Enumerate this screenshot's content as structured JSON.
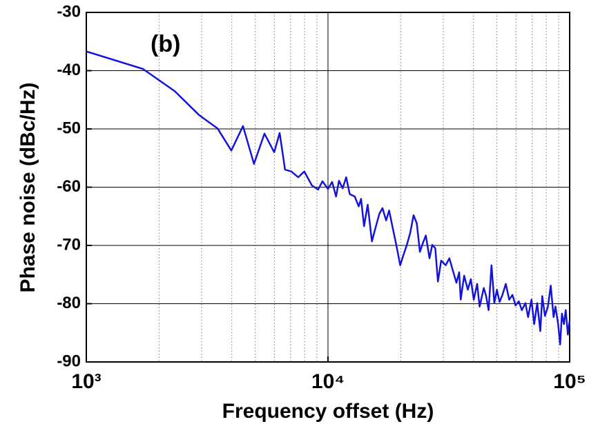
{
  "chart_data": {
    "type": "line",
    "annotation": "(b)",
    "xlabel": "Frequency offset (Hz)",
    "ylabel": "Phase noise (dBc/Hz)",
    "xscale": "log",
    "xlim": [
      1000,
      100000
    ],
    "xticks": [
      {
        "value": 1000,
        "label": "10³"
      },
      {
        "value": 10000,
        "label": "10⁴"
      },
      {
        "value": 100000,
        "label": "10⁵"
      }
    ],
    "xminorticks": [
      2000,
      3000,
      4000,
      5000,
      6000,
      7000,
      8000,
      9000,
      20000,
      30000,
      40000,
      50000,
      60000,
      70000,
      80000,
      90000
    ],
    "ylim": [
      -90,
      -30
    ],
    "yticks": [
      -90,
      -80,
      -70,
      -60,
      -50,
      -40,
      -30
    ],
    "grid": true,
    "x": [
      1000,
      1715,
      2320,
      2925,
      3490,
      3980,
      4450,
      4940,
      5460,
      5990,
      6310,
      6640,
      7050,
      7530,
      7980,
      8580,
      9100,
      9490,
      10000,
      10400,
      10800,
      11100,
      11500,
      11900,
      12300,
      12900,
      13400,
      13700,
      14100,
      14600,
      15200,
      15600,
      16300,
      16800,
      17400,
      17900,
      18600,
      19200,
      19900,
      20500,
      21200,
      21900,
      22600,
      23300,
      24000,
      24700,
      25400,
      26300,
      27000,
      27800,
      28500,
      29400,
      30700,
      31800,
      32700,
      34000,
      34900,
      35400,
      36600,
      37900,
      39000,
      40100,
      41400,
      42400,
      44100,
      45100,
      46200,
      47500,
      48800,
      50000,
      51300,
      52700,
      54400,
      56200,
      58000,
      59700,
      61600,
      63400,
      65600,
      67300,
      69500,
      71300,
      73400,
      75600,
      77000,
      79000,
      81300,
      83500,
      85800,
      87300,
      89600,
      91300,
      92900,
      94700,
      96300,
      98300,
      100000
    ],
    "series": [
      {
        "color": "#1414d8",
        "values": [
          -36.7,
          -39.7,
          -43.5,
          -47.6,
          -49.9,
          -53.7,
          -49.5,
          -56.0,
          -50.8,
          -54.0,
          -50.7,
          -57.0,
          -57.3,
          -58.3,
          -57.3,
          -59.7,
          -60.4,
          -59.0,
          -60.3,
          -59.1,
          -61.6,
          -58.9,
          -60.2,
          -58.3,
          -61.2,
          -61.6,
          -63.3,
          -62.0,
          -66.7,
          -63.0,
          -69.3,
          -67.5,
          -64.6,
          -63.6,
          -65.7,
          -64.0,
          -67.3,
          -70.1,
          -73.4,
          -71.7,
          -69.9,
          -67.8,
          -64.8,
          -66.2,
          -71.1,
          -69.6,
          -68.3,
          -72.2,
          -69.9,
          -70.5,
          -76.2,
          -72.6,
          -73.4,
          -72.2,
          -74.0,
          -76.4,
          -74.6,
          -79.3,
          -75.2,
          -77.6,
          -75.8,
          -79.3,
          -76.6,
          -80.5,
          -77.3,
          -78.7,
          -81.1,
          -73.4,
          -79.9,
          -77.6,
          -79.7,
          -78.5,
          -76.6,
          -79.3,
          -78.5,
          -80.3,
          -79.6,
          -81.1,
          -79.9,
          -82.3,
          -79.3,
          -83.5,
          -79.9,
          -84.7,
          -78.7,
          -82.1,
          -80.5,
          -76.9,
          -82.3,
          -80.5,
          -83.5,
          -87.0,
          -81.7,
          -83.5,
          -81.1,
          -85.3,
          -82.9
        ]
      }
    ]
  }
}
